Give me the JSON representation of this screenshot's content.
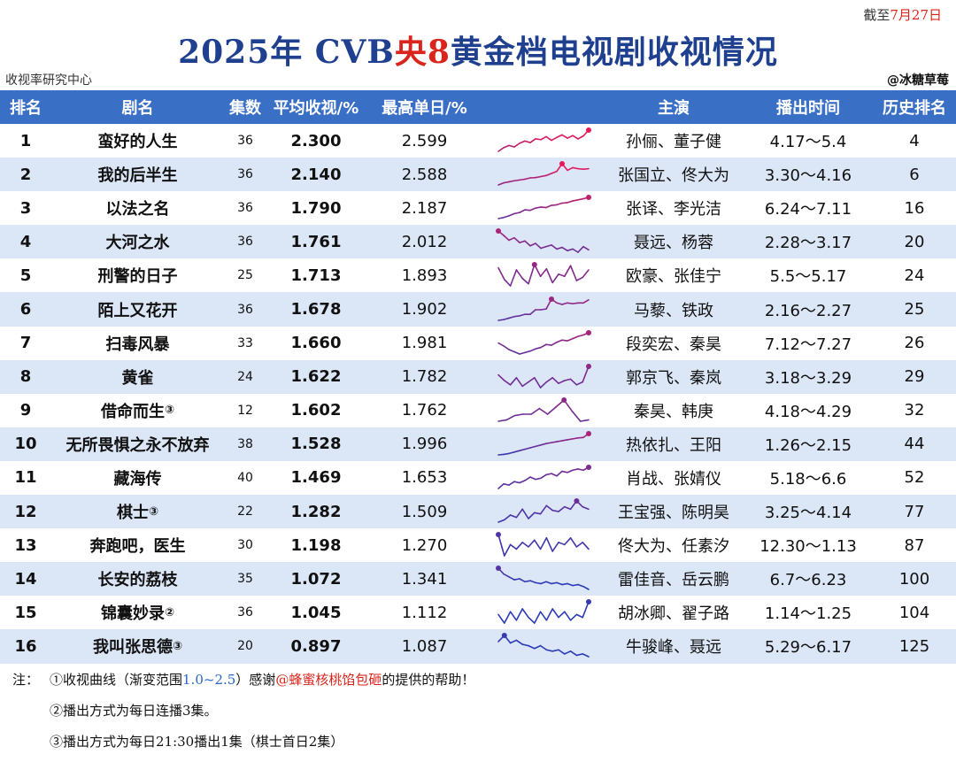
{
  "header_note": {
    "prefix": "截至",
    "date": "7月27日"
  },
  "title": {
    "part1": "2025年 CVB",
    "part2": "央8",
    "part3": "黄金档电视剧收视情况"
  },
  "source": "收视率研究中心",
  "author": "@冰糖草莓",
  "columns": [
    "排名",
    "剧名",
    "集数",
    "平均收视/%",
    "最高单日/%",
    "",
    "主演",
    "播出时间",
    "历史排名"
  ],
  "colors": {
    "header_bg": "#3a6fc6",
    "stripe": "#dbe6f7",
    "title_blue": "#1f3f8f",
    "accent_red": "#d9251c",
    "gradient_low": "#2a3bb8",
    "gradient_high": "#e8185a"
  },
  "chart_data": {
    "type": "table",
    "columns": [
      "排名",
      "剧名",
      "集数",
      "平均收视/%",
      "最高单日/%",
      "收视曲线",
      "主演",
      "播出时间",
      "历史排名"
    ],
    "rows": [
      {
        "rank": "1",
        "name": "蛮好的人生",
        "mark": "",
        "episodes": "36",
        "avg": "2.300",
        "max": "2.599",
        "cast": "孙俪、董子健",
        "air": "4.17～5.4",
        "hist": "4",
        "curve": [
          2.02,
          2.12,
          2.18,
          2.14,
          2.24,
          2.3,
          2.26,
          2.36,
          2.34,
          2.42,
          2.32,
          2.4,
          2.47,
          2.38,
          2.45,
          2.36,
          2.44,
          2.6
        ]
      },
      {
        "rank": "2",
        "name": "我的后半生",
        "mark": "",
        "episodes": "36",
        "avg": "2.140",
        "max": "2.588",
        "cast": "张国立、佟大为",
        "air": "3.30～4.16",
        "hist": "6",
        "curve": [
          1.78,
          1.86,
          1.9,
          1.94,
          1.97,
          2.0,
          2.05,
          2.06,
          2.1,
          2.14,
          2.22,
          2.3,
          2.59,
          2.34,
          2.44,
          2.4,
          2.38,
          2.4
        ]
      },
      {
        "rank": "3",
        "name": "以法之名",
        "mark": "",
        "episodes": "36",
        "avg": "1.790",
        "max": "2.187",
        "cast": "张译、李光洁",
        "air": "6.24～7.11",
        "hist": "16",
        "curve": [
          1.42,
          1.46,
          1.52,
          1.6,
          1.64,
          1.74,
          1.72,
          1.8,
          1.84,
          1.82,
          1.9,
          1.92,
          1.98,
          2.0,
          2.06,
          2.1,
          2.14,
          2.19
        ]
      },
      {
        "rank": "4",
        "name": "大河之水",
        "mark": "",
        "episodes": "36",
        "avg": "1.761",
        "max": "2.012",
        "cast": "聂远、杨蓉",
        "air": "2.28～3.17",
        "hist": "20",
        "curve": [
          2.01,
          1.9,
          1.78,
          1.84,
          1.72,
          1.76,
          1.64,
          1.7,
          1.58,
          1.62,
          1.66,
          1.56,
          1.6,
          1.52,
          1.56,
          1.48,
          1.62,
          1.54
        ]
      },
      {
        "rank": "5",
        "name": "刑警的日子",
        "mark": "",
        "episodes": "25",
        "avg": "1.713",
        "max": "1.893",
        "cast": "欧豪、张佳宁",
        "air": "5.5～5.17",
        "hist": "24",
        "curve": [
          1.82,
          1.6,
          1.48,
          1.78,
          1.62,
          1.52,
          1.88,
          1.66,
          1.8,
          1.54,
          1.7,
          1.66,
          1.86,
          1.58,
          1.64,
          1.78
        ]
      },
      {
        "rank": "6",
        "name": "陌上又花开",
        "mark": "",
        "episodes": "36",
        "avg": "1.678",
        "max": "1.902",
        "cast": "马藜、铁政",
        "air": "2.16～2.27",
        "hist": "25",
        "curve": [
          1.34,
          1.36,
          1.4,
          1.44,
          1.46,
          1.5,
          1.5,
          1.62,
          1.62,
          1.64,
          1.9,
          1.8,
          1.76,
          1.8,
          1.78,
          1.8,
          1.8,
          1.88
        ]
      },
      {
        "rank": "7",
        "name": "扫毒风暴",
        "mark": "",
        "episodes": "33",
        "avg": "1.660",
        "max": "1.981",
        "cast": "段奕宏、秦昊",
        "air": "7.12～7.27",
        "hist": "26",
        "curve": [
          1.7,
          1.62,
          1.52,
          1.46,
          1.4,
          1.44,
          1.48,
          1.54,
          1.58,
          1.66,
          1.64,
          1.72,
          1.78,
          1.76,
          1.82,
          1.88,
          1.92,
          1.98
        ]
      },
      {
        "rank": "8",
        "name": "黄雀",
        "mark": "",
        "episodes": "24",
        "avg": "1.622",
        "max": "1.782",
        "cast": "郭京飞、秦岚",
        "air": "3.18～3.29",
        "hist": "29",
        "curve": [
          1.66,
          1.58,
          1.52,
          1.62,
          1.5,
          1.56,
          1.62,
          1.48,
          1.56,
          1.62,
          1.54,
          1.58,
          1.6,
          1.52,
          1.56,
          1.78
        ]
      },
      {
        "rank": "9",
        "name": "借命而生",
        "mark": "③",
        "episodes": "12",
        "avg": "1.602",
        "max": "1.762",
        "cast": "秦昊、韩庚",
        "air": "4.18～4.29",
        "hist": "32",
        "curve": [
          1.46,
          1.48,
          1.54,
          1.56,
          1.56,
          1.64,
          1.56,
          1.66,
          1.76,
          1.6,
          1.46,
          1.48
        ]
      },
      {
        "rank": "10",
        "name": "无所畏惧之永不放弃",
        "mark": "",
        "episodes": "38",
        "avg": "1.528",
        "max": "1.996",
        "cast": "热依扎、王阳",
        "air": "1.26～2.15",
        "hist": "44",
        "curve": [
          1.1,
          1.12,
          1.16,
          1.22,
          1.28,
          1.34,
          1.4,
          1.46,
          1.52,
          1.58,
          1.62,
          1.66,
          1.7,
          1.74,
          1.78,
          1.82,
          1.84,
          2.0
        ]
      },
      {
        "rank": "11",
        "name": "藏海传",
        "mark": "",
        "episodes": "40",
        "avg": "1.469",
        "max": "1.653",
        "cast": "肖战、张婧仪",
        "air": "5.18～6.6",
        "hist": "52",
        "curve": [
          1.28,
          1.36,
          1.34,
          1.4,
          1.38,
          1.42,
          1.48,
          1.44,
          1.46,
          1.52,
          1.54,
          1.5,
          1.58,
          1.56,
          1.6,
          1.62,
          1.6,
          1.65
        ]
      },
      {
        "rank": "12",
        "name": "棋士",
        "mark": "③",
        "episodes": "22",
        "avg": "1.282",
        "max": "1.509",
        "cast": "王宝强、陈明昊",
        "air": "3.25～4.14",
        "hist": "77",
        "curve": [
          1.14,
          1.18,
          1.26,
          1.22,
          1.36,
          1.2,
          1.3,
          1.28,
          1.42,
          1.34,
          1.32,
          1.4,
          1.36,
          1.5,
          1.4,
          1.36
        ]
      },
      {
        "rank": "13",
        "name": "奔跑吧，医生",
        "mark": "",
        "episodes": "30",
        "avg": "1.198",
        "max": "1.270",
        "cast": "佟大为、任素汐",
        "air": "12.30～1.13",
        "hist": "87",
        "curve": [
          1.27,
          1.08,
          1.18,
          1.14,
          1.2,
          1.16,
          1.22,
          1.14,
          1.24,
          1.12,
          1.2,
          1.18,
          1.24,
          1.16,
          1.2,
          1.14
        ]
      },
      {
        "rank": "14",
        "name": "长安的荔枝",
        "mark": "",
        "episodes": "35",
        "avg": "1.072",
        "max": "1.341",
        "cast": "雷佳音、岳云鹏",
        "air": "6.7～6.23",
        "hist": "100",
        "curve": [
          1.34,
          1.22,
          1.16,
          1.1,
          1.12,
          1.06,
          1.08,
          1.04,
          1.02,
          1.06,
          1.02,
          1.04,
          1.0,
          1.02,
          0.98,
          1.0,
          0.96,
          0.9
        ]
      },
      {
        "rank": "15",
        "name": "锦囊妙录",
        "mark": "②",
        "episodes": "36",
        "avg": "1.045",
        "max": "1.112",
        "cast": "胡冰卿、翟子路",
        "air": "1.14～1.25",
        "hist": "104",
        "curve": [
          1.02,
          0.96,
          1.04,
          0.98,
          1.06,
          1.0,
          0.96,
          1.04,
          0.98,
          1.06,
          1.0,
          1.04,
          0.98,
          1.02,
          1.0,
          1.11
        ]
      },
      {
        "rank": "16",
        "name": "我叫张思德",
        "mark": "③",
        "episodes": "20",
        "avg": "0.897",
        "max": "1.087",
        "cast": "牛骏峰、聂远",
        "air": "5.29～6.17",
        "hist": "125",
        "curve": [
          1.0,
          1.09,
          0.98,
          1.02,
          0.96,
          0.94,
          0.9,
          0.94,
          0.88,
          0.86,
          0.88,
          0.82,
          0.86,
          0.8,
          0.82,
          0.78
        ]
      }
    ],
    "curve_color_range": [
      1.0,
      2.5
    ]
  },
  "notes": {
    "label": "注：",
    "n1_a": "①收视曲线（渐变范围",
    "n1_range": "1.0~2.5",
    "n1_b": "）感谢",
    "n1_credit": "@蜂蜜核桃馅包砸",
    "n1_c": "的提供的帮助！",
    "n2": "②播出方式为每日连播3集。",
    "n3": "③播出方式为每日21:30播出1集（棋士首日2集）"
  }
}
